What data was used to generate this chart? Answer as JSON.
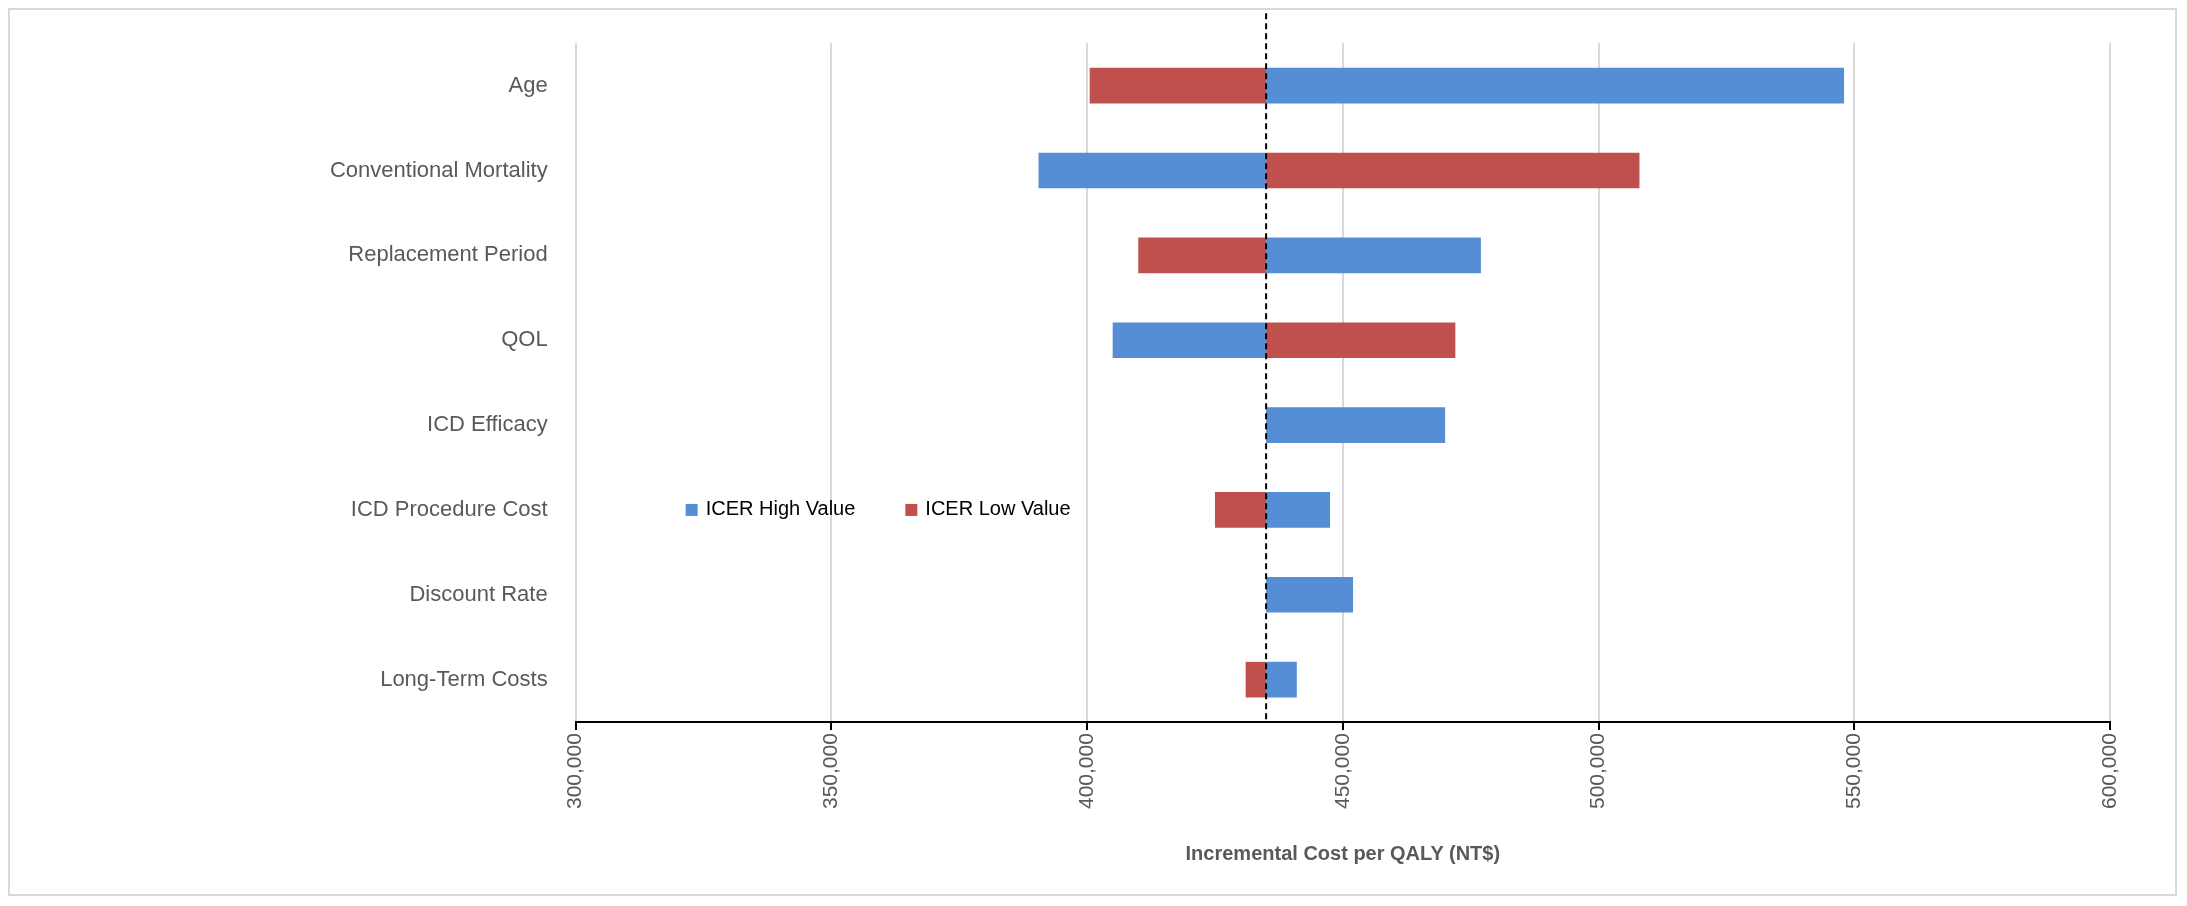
{
  "chart_data": {
    "type": "bar",
    "orientation": "horizontal",
    "xlabel": "Incremental Cost per QALY (NT$)",
    "categories": [
      "Age",
      "Conventional Mortality",
      "Replacement Period",
      "QOL",
      "ICD Efficacy",
      "ICD Procedure Cost",
      "Discount Rate",
      "Long-Term Costs"
    ],
    "series": [
      {
        "name": "ICER High Value",
        "color": "#558ed5",
        "base": [
          435000,
          435000,
          435000,
          435000,
          435000,
          435000,
          435000,
          435000
        ],
        "values": [
          113000,
          -44500,
          42000,
          -30000,
          35000,
          12500,
          17000,
          6000
        ]
      },
      {
        "name": "ICER Low Value",
        "color": "#c0504d",
        "base": [
          435000,
          435000,
          435000,
          435000,
          null,
          435000,
          null,
          435000
        ],
        "values": [
          -34500,
          73000,
          -25000,
          37000,
          null,
          -10000,
          null,
          -4000
        ]
      }
    ],
    "xlim": [
      300000,
      600000
    ],
    "xticks": [
      {
        "value": 300000,
        "label": "300,000"
      },
      {
        "value": 350000,
        "label": "350,000"
      },
      {
        "value": 400000,
        "label": "400,000"
      },
      {
        "value": 450000,
        "label": "450,000"
      },
      {
        "value": 500000,
        "label": "500,000"
      },
      {
        "value": 550000,
        "label": "550,000"
      },
      {
        "value": 600000,
        "label": "600,000"
      }
    ],
    "ref_lines": [
      {
        "axis": "x",
        "value": 435000,
        "color": "#000000",
        "line_style": "dashed"
      }
    ],
    "grid": "x",
    "legend": "left"
  }
}
